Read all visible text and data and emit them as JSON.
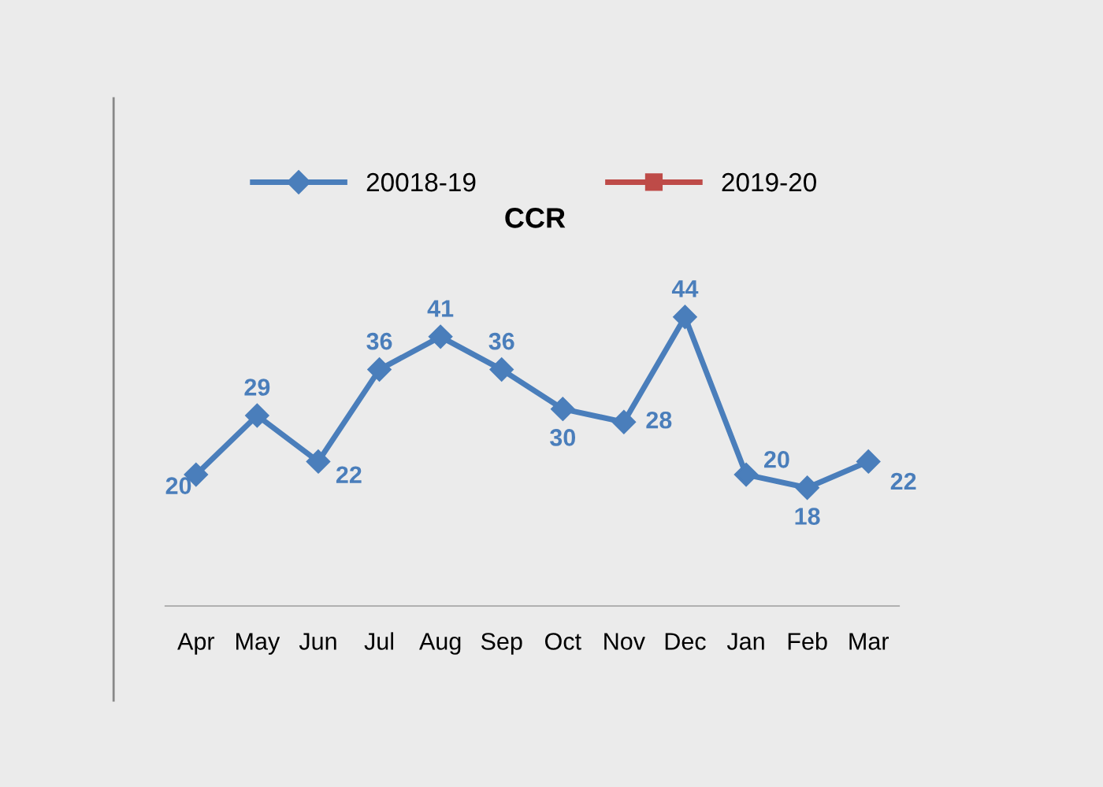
{
  "chart_data": {
    "type": "line",
    "title": "CCR",
    "categories": [
      "Apr",
      "May",
      "Jun",
      "Jul",
      "Aug",
      "Sep",
      "Oct",
      "Nov",
      "Dec",
      "Jan",
      "Feb",
      "Mar"
    ],
    "series": [
      {
        "name": "20018-19",
        "color": "#4a7ebb",
        "marker": "diamond",
        "values": [
          20,
          29,
          22,
          36,
          41,
          36,
          30,
          28,
          44,
          20,
          18,
          22
        ]
      },
      {
        "name": "2019-20",
        "color": "#be4b48",
        "marker": "square",
        "values": [
          null,
          null,
          null,
          null,
          null,
          null,
          null,
          null,
          null,
          null,
          null,
          null
        ]
      }
    ],
    "data_labels": true,
    "legend": "top",
    "grid": false
  }
}
